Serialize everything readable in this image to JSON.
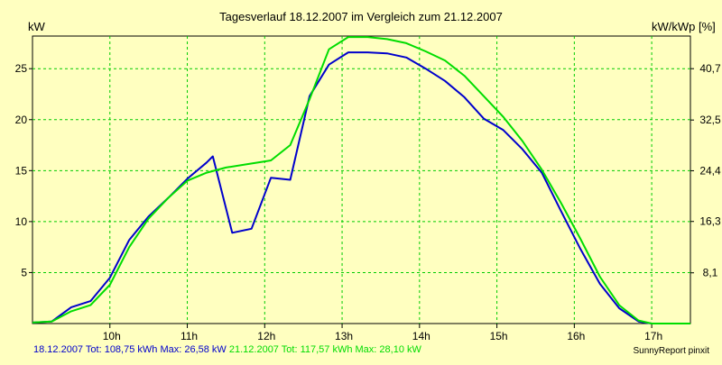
{
  "chart_data": {
    "type": "line",
    "title": "Tagesverlauf 18.12.2007 im Vergleich zum 21.12.2007",
    "ylabel": "kW",
    "y2label": "kW/kWp [%]",
    "xlabel": "",
    "x_ticks": [
      "10h",
      "11h",
      "12h",
      "13h",
      "14h",
      "15h",
      "16h",
      "17h"
    ],
    "y_ticks": [
      5,
      10,
      15,
      20,
      25
    ],
    "y_tick_labels": [
      "5",
      "10",
      "15",
      "20",
      "25"
    ],
    "y2_ticks": [
      8.1,
      16.3,
      24.4,
      32.5,
      40.7
    ],
    "y2_tick_labels": [
      "8,1",
      "16,3",
      "24,4",
      "32,5",
      "40,7"
    ],
    "xlim": [
      9.0,
      17.5
    ],
    "ylim": [
      0,
      28.2
    ],
    "grid": true,
    "series": [
      {
        "name": "18.12.2007",
        "color": "#0000cc",
        "x": [
          9.0,
          9.25,
          9.5,
          9.75,
          10.0,
          10.25,
          10.5,
          10.75,
          11.0,
          11.25,
          11.33,
          11.58,
          11.83,
          12.08,
          12.33,
          12.58,
          12.83,
          13.08,
          13.33,
          13.58,
          13.83,
          14.08,
          14.33,
          14.58,
          14.83,
          15.08,
          15.33,
          15.58,
          15.83,
          16.08,
          16.33,
          16.58,
          16.83,
          17.0
        ],
        "y": [
          0.1,
          0.2,
          1.6,
          2.2,
          4.5,
          8.2,
          10.5,
          12.3,
          14.2,
          15.8,
          16.4,
          8.9,
          9.3,
          14.3,
          14.1,
          22.3,
          25.4,
          26.6,
          26.6,
          26.5,
          26.1,
          25.0,
          23.8,
          22.2,
          20.1,
          19.0,
          17.1,
          14.8,
          11.0,
          7.3,
          3.9,
          1.5,
          0.2,
          0.0
        ]
      },
      {
        "name": "21.12.2007",
        "color": "#00dd00",
        "x": [
          9.0,
          9.25,
          9.5,
          9.75,
          10.0,
          10.25,
          10.5,
          10.75,
          11.0,
          11.25,
          11.5,
          11.75,
          12.0,
          12.08,
          12.33,
          12.58,
          12.83,
          13.08,
          13.33,
          13.58,
          13.83,
          14.08,
          14.33,
          14.58,
          14.83,
          15.08,
          15.33,
          15.58,
          15.83,
          16.08,
          16.33,
          16.58,
          16.83,
          17.0,
          17.25,
          17.5
        ],
        "y": [
          0.1,
          0.2,
          1.2,
          1.8,
          3.8,
          7.5,
          10.3,
          12.3,
          14.0,
          14.8,
          15.3,
          15.6,
          15.9,
          16.0,
          17.5,
          22.0,
          26.9,
          28.1,
          28.1,
          27.9,
          27.5,
          26.7,
          25.8,
          24.3,
          22.3,
          20.3,
          17.9,
          15.1,
          11.8,
          8.3,
          4.6,
          1.8,
          0.3,
          0.0,
          0.0,
          0.0
        ]
      }
    ],
    "legend": [
      {
        "series": "18.12.2007",
        "text": "18.12.2007 Tot: 108,75 kWh Max: 26,58 kW",
        "color": "#0000cc"
      },
      {
        "series": "21.12.2007",
        "text": "21.12.2007 Tot: 117,57 kWh Max: 28,10 kW",
        "color": "#00dd00"
      }
    ],
    "legend_placement": "bottom-left",
    "credit": "SunnyReport pinxit"
  }
}
